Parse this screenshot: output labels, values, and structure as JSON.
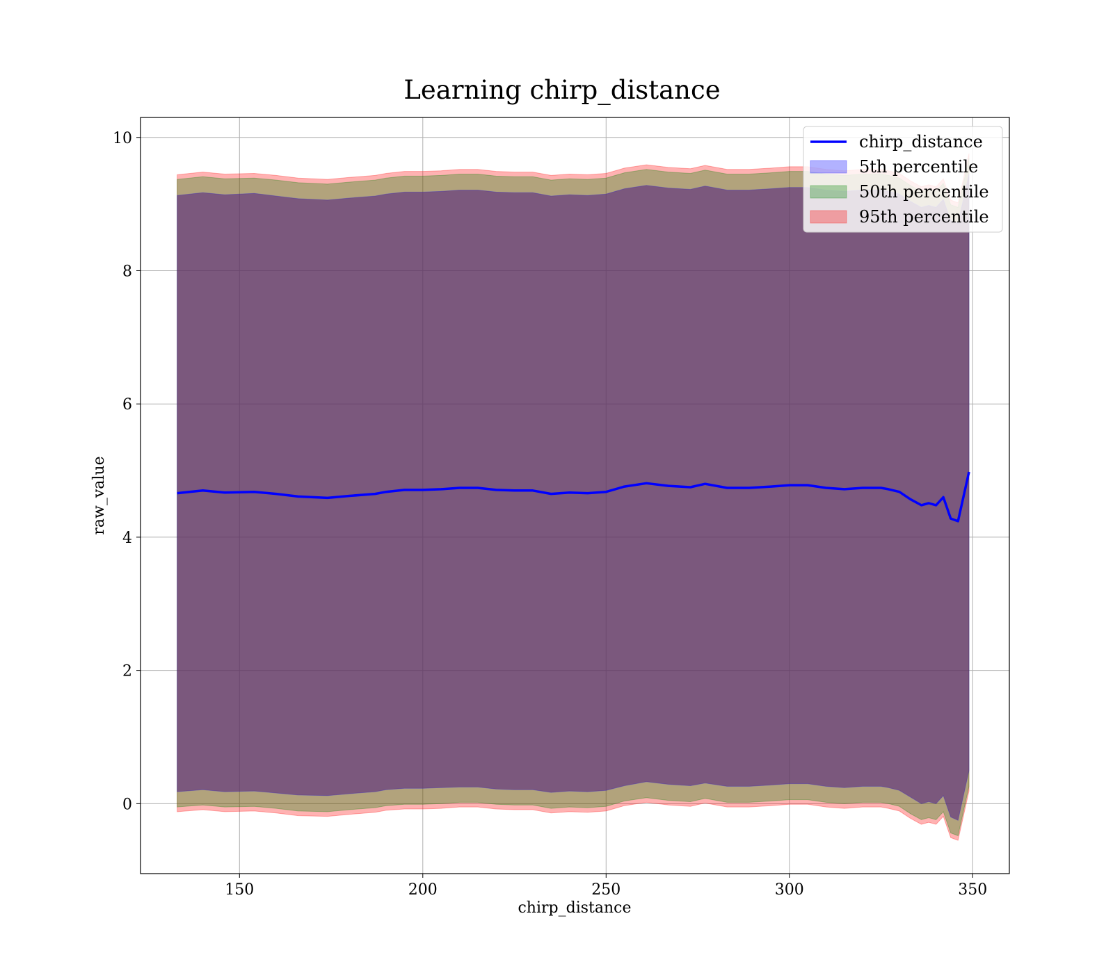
{
  "chart_data": {
    "type": "area",
    "title": "Learning chirp_distance",
    "xlabel": "chirp_distance",
    "ylabel": "raw_value",
    "xlim": [
      123,
      360
    ],
    "ylim": [
      -1.05,
      10.3
    ],
    "xticks": [
      150,
      200,
      250,
      300,
      350
    ],
    "yticks": [
      0,
      2,
      4,
      6,
      8,
      10
    ],
    "grid": true,
    "legend_position": "top-right",
    "colors": {
      "line": "#0000ff",
      "band_5": "#0000ff",
      "band_50": "#008000",
      "band_95": "#ff0000"
    },
    "series": [
      {
        "name": "chirp_distance",
        "kind": "line",
        "x": [
          133,
          140,
          146,
          154,
          160,
          166,
          174,
          180,
          187,
          190,
          195,
          200,
          205,
          210,
          215,
          220,
          225,
          230,
          235,
          240,
          245,
          250,
          255,
          261,
          267,
          273,
          277,
          283,
          289,
          295,
          300,
          305,
          310,
          315,
          320,
          325,
          327,
          330,
          333,
          336,
          338,
          340,
          342,
          344,
          346,
          349
        ],
        "values": [
          4.66,
          4.7,
          4.67,
          4.68,
          4.65,
          4.61,
          4.59,
          4.62,
          4.65,
          4.68,
          4.71,
          4.71,
          4.72,
          4.74,
          4.74,
          4.71,
          4.7,
          4.7,
          4.65,
          4.67,
          4.66,
          4.68,
          4.76,
          4.81,
          4.77,
          4.75,
          4.8,
          4.74,
          4.74,
          4.76,
          4.78,
          4.78,
          4.74,
          4.72,
          4.74,
          4.74,
          4.72,
          4.68,
          4.57,
          4.48,
          4.51,
          4.48,
          4.6,
          4.28,
          4.24,
          4.98
        ]
      },
      {
        "name": "5th percentile",
        "kind": "band",
        "x": [
          133,
          140,
          146,
          154,
          160,
          166,
          174,
          180,
          187,
          190,
          195,
          200,
          205,
          210,
          215,
          220,
          225,
          230,
          235,
          240,
          245,
          250,
          255,
          261,
          267,
          273,
          277,
          283,
          289,
          295,
          300,
          305,
          310,
          315,
          320,
          325,
          327,
          330,
          333,
          336,
          338,
          340,
          342,
          344,
          346,
          349
        ],
        "lower": [
          0.18,
          0.21,
          0.18,
          0.19,
          0.16,
          0.13,
          0.12,
          0.15,
          0.18,
          0.21,
          0.23,
          0.23,
          0.24,
          0.25,
          0.25,
          0.22,
          0.21,
          0.21,
          0.17,
          0.19,
          0.18,
          0.2,
          0.27,
          0.33,
          0.29,
          0.27,
          0.31,
          0.26,
          0.26,
          0.28,
          0.3,
          0.3,
          0.26,
          0.24,
          0.26,
          0.26,
          0.24,
          0.2,
          0.1,
          0.0,
          0.03,
          0.0,
          0.12,
          -0.2,
          -0.25,
          0.5
        ],
        "upper": [
          9.13,
          9.17,
          9.14,
          9.16,
          9.12,
          9.08,
          9.06,
          9.09,
          9.12,
          9.15,
          9.18,
          9.18,
          9.19,
          9.21,
          9.21,
          9.18,
          9.17,
          9.17,
          9.12,
          9.14,
          9.13,
          9.15,
          9.23,
          9.28,
          9.24,
          9.22,
          9.27,
          9.21,
          9.21,
          9.23,
          9.25,
          9.25,
          9.21,
          9.19,
          9.21,
          9.21,
          9.19,
          9.15,
          9.04,
          8.95,
          8.98,
          8.95,
          9.07,
          8.75,
          8.71,
          9.45
        ]
      },
      {
        "name": "50th percentile",
        "kind": "band",
        "x": [
          133,
          140,
          146,
          154,
          160,
          166,
          174,
          180,
          187,
          190,
          195,
          200,
          205,
          210,
          215,
          220,
          225,
          230,
          235,
          240,
          245,
          250,
          255,
          261,
          267,
          273,
          277,
          283,
          289,
          295,
          300,
          305,
          310,
          315,
          320,
          325,
          327,
          330,
          333,
          336,
          338,
          340,
          342,
          344,
          346,
          349
        ],
        "lower": [
          -0.05,
          -0.02,
          -0.05,
          -0.04,
          -0.07,
          -0.11,
          -0.12,
          -0.09,
          -0.06,
          -0.03,
          -0.01,
          -0.01,
          0.0,
          0.02,
          0.02,
          -0.01,
          -0.02,
          -0.02,
          -0.07,
          -0.05,
          -0.06,
          -0.04,
          0.04,
          0.09,
          0.05,
          0.03,
          0.08,
          0.02,
          0.02,
          0.04,
          0.06,
          0.06,
          0.02,
          0.0,
          0.02,
          0.02,
          0.0,
          -0.04,
          -0.15,
          -0.24,
          -0.21,
          -0.24,
          -0.12,
          -0.44,
          -0.48,
          0.26
        ],
        "upper": [
          9.37,
          9.41,
          9.38,
          9.39,
          9.36,
          9.32,
          9.3,
          9.33,
          9.36,
          9.39,
          9.42,
          9.42,
          9.43,
          9.45,
          9.45,
          9.42,
          9.41,
          9.41,
          9.36,
          9.38,
          9.37,
          9.39,
          9.47,
          9.52,
          9.48,
          9.46,
          9.51,
          9.45,
          9.45,
          9.47,
          9.49,
          9.49,
          9.45,
          9.43,
          9.45,
          9.45,
          9.43,
          9.39,
          9.28,
          9.19,
          9.22,
          9.19,
          9.31,
          8.99,
          8.95,
          9.69
        ]
      },
      {
        "name": "95th percentile",
        "kind": "band",
        "x": [
          133,
          140,
          146,
          154,
          160,
          166,
          174,
          180,
          187,
          190,
          195,
          200,
          205,
          210,
          215,
          220,
          225,
          230,
          235,
          240,
          245,
          250,
          255,
          261,
          267,
          273,
          277,
          283,
          289,
          295,
          300,
          305,
          310,
          315,
          320,
          325,
          327,
          330,
          333,
          336,
          338,
          340,
          342,
          344,
          346,
          349
        ],
        "lower": [
          -0.12,
          -0.09,
          -0.12,
          -0.11,
          -0.14,
          -0.18,
          -0.19,
          -0.16,
          -0.13,
          -0.1,
          -0.08,
          -0.08,
          -0.07,
          -0.05,
          -0.05,
          -0.08,
          -0.09,
          -0.09,
          -0.14,
          -0.12,
          -0.13,
          -0.11,
          -0.03,
          0.02,
          -0.02,
          -0.04,
          0.01,
          -0.05,
          -0.05,
          -0.03,
          -0.01,
          -0.01,
          -0.05,
          -0.07,
          -0.05,
          -0.05,
          -0.07,
          -0.11,
          -0.22,
          -0.31,
          -0.28,
          -0.31,
          -0.19,
          -0.51,
          -0.55,
          0.19
        ],
        "upper": [
          9.44,
          9.48,
          9.45,
          9.46,
          9.43,
          9.39,
          9.37,
          9.4,
          9.43,
          9.46,
          9.49,
          9.49,
          9.5,
          9.52,
          9.52,
          9.49,
          9.48,
          9.48,
          9.43,
          9.45,
          9.44,
          9.46,
          9.54,
          9.59,
          9.55,
          9.53,
          9.58,
          9.52,
          9.52,
          9.54,
          9.56,
          9.56,
          9.52,
          9.5,
          9.52,
          9.52,
          9.5,
          9.46,
          9.35,
          9.26,
          9.29,
          9.26,
          9.38,
          9.06,
          9.02,
          9.76
        ]
      }
    ]
  }
}
